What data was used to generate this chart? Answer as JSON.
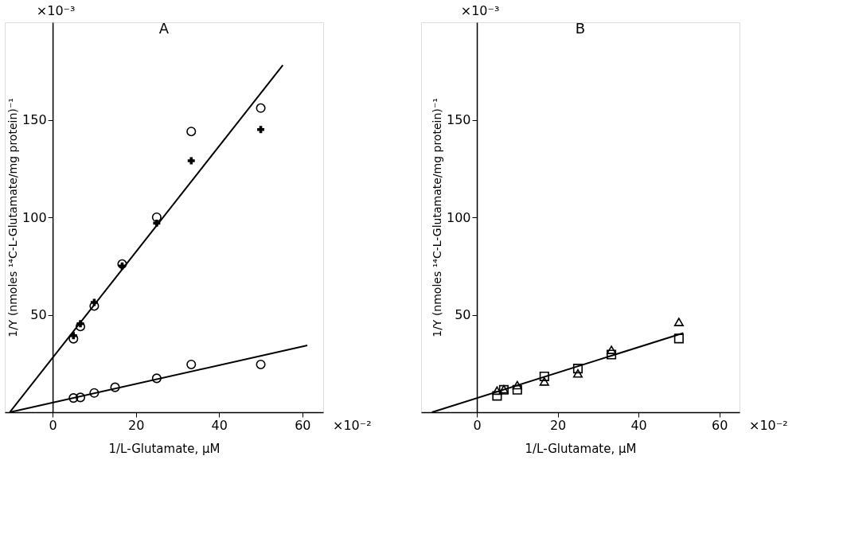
{
  "chart_data": [
    {
      "type": "scatter",
      "title": "A",
      "xlabel": "1/L-Glutamate, μM",
      "ylabel": "1/Y (nmoles ¹⁴C-L-Glutamate/mg protein)⁻¹",
      "annotations": [
        "×10⁻³",
        "×10⁻²"
      ],
      "xlim": [
        -11.5,
        65
      ],
      "ylim": [
        0,
        200
      ],
      "xticks": [
        0,
        20,
        40,
        60
      ],
      "yticks": [
        50,
        100,
        150
      ],
      "series": [
        {
          "marker": "circle",
          "color": "#000000",
          "x": [
            5,
            6.67,
            10,
            16.7,
            25,
            33.3,
            50
          ],
          "values": [
            37.7,
            44,
            54.5,
            76,
            100,
            144,
            156
          ]
        },
        {
          "marker": "cross",
          "color": "#000000",
          "x": [
            5,
            6.67,
            10,
            16.7,
            25,
            33.3,
            50
          ],
          "values": [
            39.3,
            45.4,
            56.3,
            75,
            97,
            129,
            145
          ]
        },
        {
          "marker": "circle",
          "color": "#000000",
          "x": [
            5,
            6.67,
            10,
            15,
            25,
            33.3,
            50
          ],
          "values": [
            7.3,
            7.6,
            9.9,
            12.8,
            17.4,
            24.5,
            24.5
          ]
        },
        {
          "type": "line",
          "line_style": "solid",
          "color": "#000000",
          "x": [
            -10.3,
            55.3
          ],
          "values": [
            0,
            178
          ]
        },
        {
          "type": "line",
          "line_style": "solid",
          "color": "#000000",
          "x": [
            -10.3,
            61.2
          ],
          "values": [
            0,
            34.3
          ]
        }
      ]
    },
    {
      "type": "scatter",
      "title": "B",
      "xlabel": "1/L-Glutamate, μM",
      "ylabel": "1/Y (nmoles ¹⁴C-L-Glutamate/mg protein)⁻¹",
      "annotations": [
        "×10⁻³",
        "×10⁻²"
      ],
      "xlim": [
        -13.8,
        65
      ],
      "ylim": [
        0,
        200
      ],
      "xticks": [
        0,
        20,
        40,
        60
      ],
      "yticks": [
        50,
        100,
        150
      ],
      "series": [
        {
          "marker": "triangle",
          "color": "#000000",
          "x": [
            5,
            6.67,
            10,
            16.7,
            25,
            33.3,
            50
          ],
          "values": [
            11.1,
            11.8,
            13.9,
            15.8,
            19.9,
            32,
            46.3
          ]
        },
        {
          "marker": "square",
          "color": "#000000",
          "x": [
            5,
            6.67,
            10,
            16.7,
            25,
            33.3,
            50
          ],
          "values": [
            8.4,
            11.5,
            11.5,
            18.4,
            22.4,
            29.6,
            37.8
          ]
        },
        {
          "type": "line",
          "line_style": "solid",
          "color": "#000000",
          "x": [
            -11.1,
            51.1
          ],
          "values": [
            0,
            40.6
          ]
        }
      ]
    }
  ]
}
